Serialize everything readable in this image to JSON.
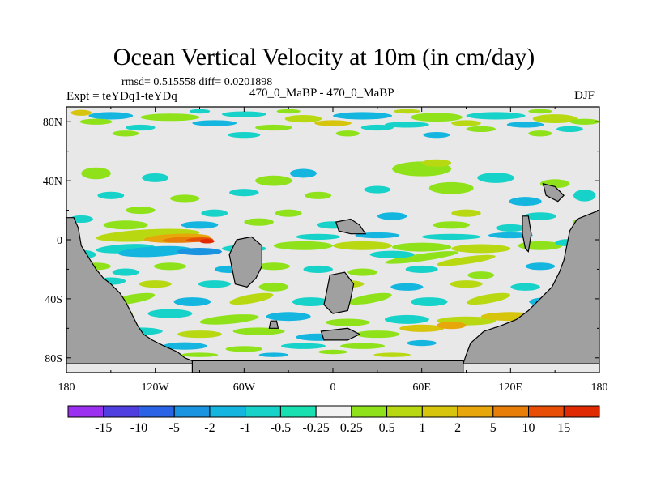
{
  "title": "Ocean Vertical Velocity at 10m (in cm/day)",
  "stats_line": "rmsd= 0.515558  diff= 0.0201898",
  "left_label": "Expt = teYDq1-teYDq",
  "center_label": "470_0_MaBP - 470_0_MaBP",
  "right_label": "DJF",
  "chart_data": {
    "type": "heatmap",
    "title": "Ocean Vertical Velocity at 10m (in cm/day)",
    "subtitle": "rmsd= 0.515558  diff= 0.0201898",
    "xlabel": "",
    "ylabel": "",
    "xlim": [
      -180,
      180
    ],
    "ylim": [
      -90,
      90
    ],
    "x_ticks": [
      -180,
      -120,
      -60,
      0,
      60,
      120,
      180
    ],
    "x_tick_labels": [
      "180",
      "120W",
      "60W",
      "0",
      "60E",
      "120E",
      "180"
    ],
    "y_ticks": [
      80,
      40,
      0,
      -40,
      -80
    ],
    "y_tick_labels": [
      "80N",
      "40N",
      "0",
      "40S",
      "80S"
    ],
    "land_color": "#a0a0a0",
    "missing_color": "#e8e8e8",
    "colorbar": {
      "levels": [
        "-15",
        "-10",
        "-5",
        "-2",
        "-1",
        "-0.5",
        "-0.25",
        "0.25",
        "0.5",
        "1",
        "2",
        "5",
        "10",
        "15"
      ],
      "colors": [
        "#9b30f0",
        "#4f3ee0",
        "#2a63e6",
        "#1a93e0",
        "#14b6e0",
        "#17d2c8",
        "#19e0b0",
        "#f2f2f2",
        "#8fe21a",
        "#b8d812",
        "#d6c50c",
        "#e7a60a",
        "#e87d08",
        "#e84e05",
        "#e02a02"
      ]
    },
    "features": [
      {
        "name": "equatorial positive band",
        "lon": [
          -160,
          -60
        ],
        "lat": [
          -5,
          5
        ],
        "value": "5 to 15"
      },
      {
        "name": "equatorial negative band",
        "lon": [
          -150,
          -60
        ],
        "lat": [
          -12,
          -5
        ],
        "value": "-2 to -0.5"
      },
      {
        "name": "southern ocean positive band",
        "lon": [
          60,
          160
        ],
        "lat": [
          -60,
          -50
        ],
        "value": "0.5 to 5"
      }
    ]
  }
}
